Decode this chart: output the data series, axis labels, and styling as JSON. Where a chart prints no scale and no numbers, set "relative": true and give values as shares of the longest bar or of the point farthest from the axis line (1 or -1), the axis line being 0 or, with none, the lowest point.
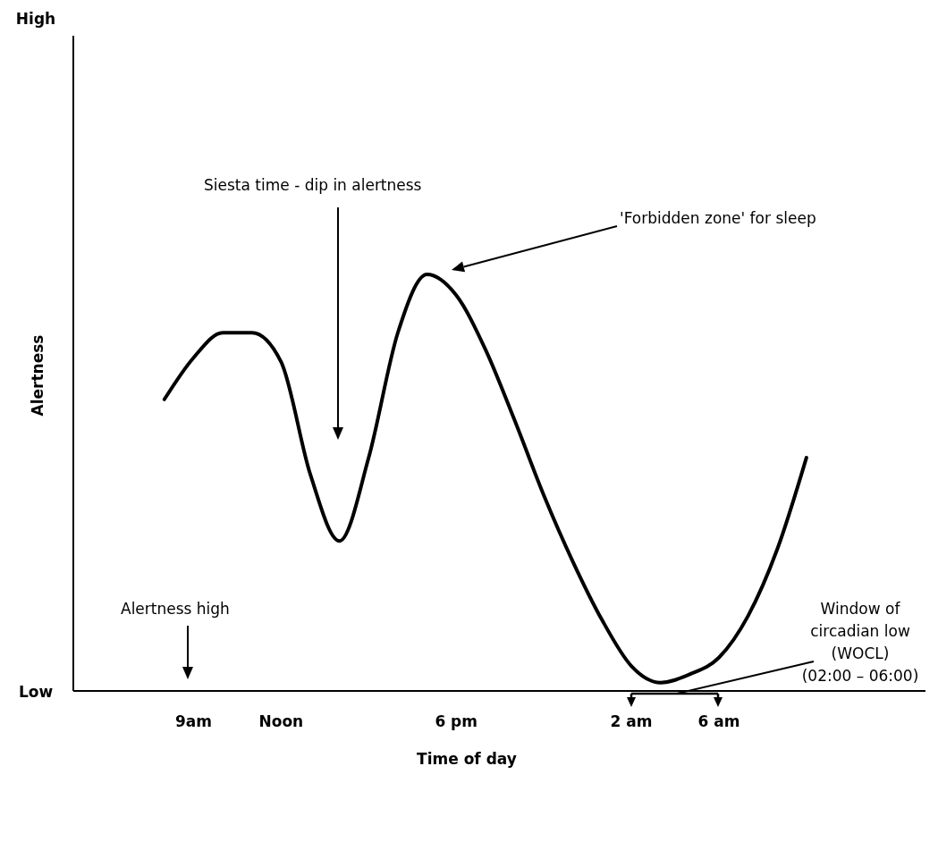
{
  "chart_data": {
    "type": "line",
    "xlabel": "Time of day",
    "ylabel": "Alertness",
    "relative": true,
    "categories": [
      null,
      null,
      null,
      null,
      "9am",
      null,
      null,
      "Noon",
      null,
      null,
      null,
      null,
      null,
      "6 pm",
      null,
      null,
      null,
      null,
      null,
      "2 am",
      null,
      null,
      "6 am",
      null,
      null,
      null,
      null,
      null,
      null
    ],
    "series": [
      {
        "color": "#000000",
        "values": [
          null,
          null,
          null,
          0.7,
          0.8,
          0.86,
          0.86,
          0.79,
          0.52,
          0.36,
          0.56,
          0.86,
          1.0,
          0.95,
          0.82,
          0.65,
          0.47,
          0.31,
          0.17,
          0.06,
          0.02,
          0.04,
          0.08,
          0.18,
          0.34,
          0.56,
          null,
          null,
          null
        ]
      }
    ],
    "grid": false,
    "marker": "none",
    "line_style": "solid",
    "annotations": [
      "Siesta time - dip in alertness",
      "'Forbidden zone' for sleep",
      "Alertness high",
      "Window of\ncircadian low\n(WOCL)\n(02:00 – 06:00)",
      "High",
      "Low"
    ]
  }
}
